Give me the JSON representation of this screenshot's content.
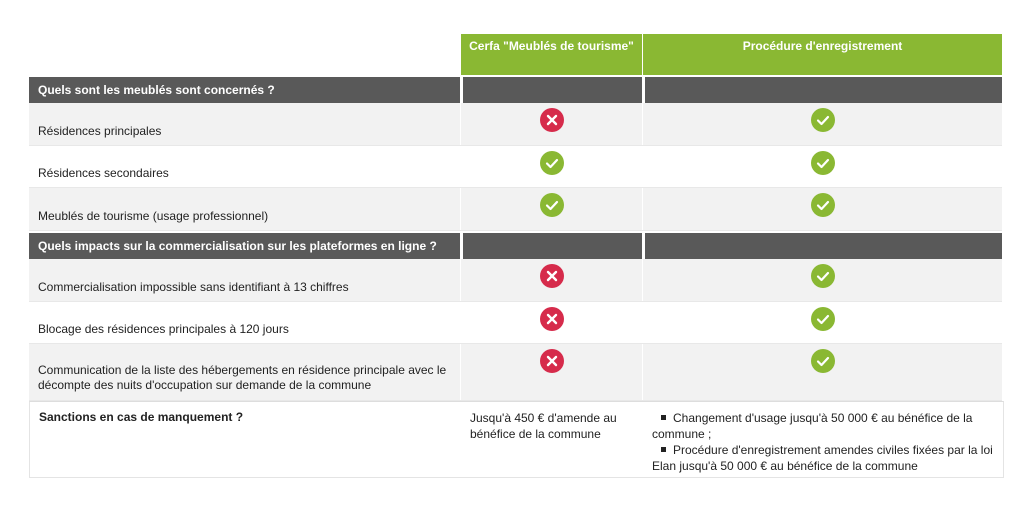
{
  "header": {
    "col2": "Cerfa \"Meublés de tourisme\"",
    "col3": "Procédure d'enregistrement"
  },
  "section1": {
    "title": "Quels sont les meublés sont concernés ?"
  },
  "section1_rows": [
    {
      "label": "Résidences principales",
      "cerfa": "cross-icon",
      "procedure": "check-icon"
    },
    {
      "label": "Résidences secondaires",
      "cerfa": "check-icon",
      "procedure": "check-icon"
    },
    {
      "label": "Meublés de tourisme (usage professionnel)",
      "cerfa": "check-icon",
      "procedure": "check-icon"
    }
  ],
  "section2": {
    "title": "Quels impacts sur la commercialisation sur les plateformes en ligne ?"
  },
  "section2_rows": [
    {
      "label": "Commercialisation impossible sans identifiant à 13 chiffres",
      "cerfa": "cross-icon",
      "procedure": "check-icon"
    },
    {
      "label": "Blocage des résidences principales à 120 jours",
      "cerfa": "cross-icon",
      "procedure": "check-icon"
    },
    {
      "label": "Communication de la liste des hébergements en résidence principale avec le décompte des nuits d'occupation sur demande de la commune",
      "cerfa": "cross-icon",
      "procedure": "check-icon"
    }
  ],
  "sanctions": {
    "label": "Sanctions en cas de manquement ?",
    "cerfa": "Jusqu'à 450 € d'amende au bénéfice de la commune",
    "procedure_items": [
      "Changement d'usage jusqu'à 50 000 € au bénéfice de la commune ;",
      "Procédure d'enregistrement amendes civiles fixées par la loi Elan jusqu'à 50 000 € au bénéfice de la commune"
    ]
  },
  "colors": {
    "header_green": "#8ab833",
    "section_gray": "#595959",
    "check_green": "#8ab833",
    "cross_red": "#d62b4b"
  }
}
